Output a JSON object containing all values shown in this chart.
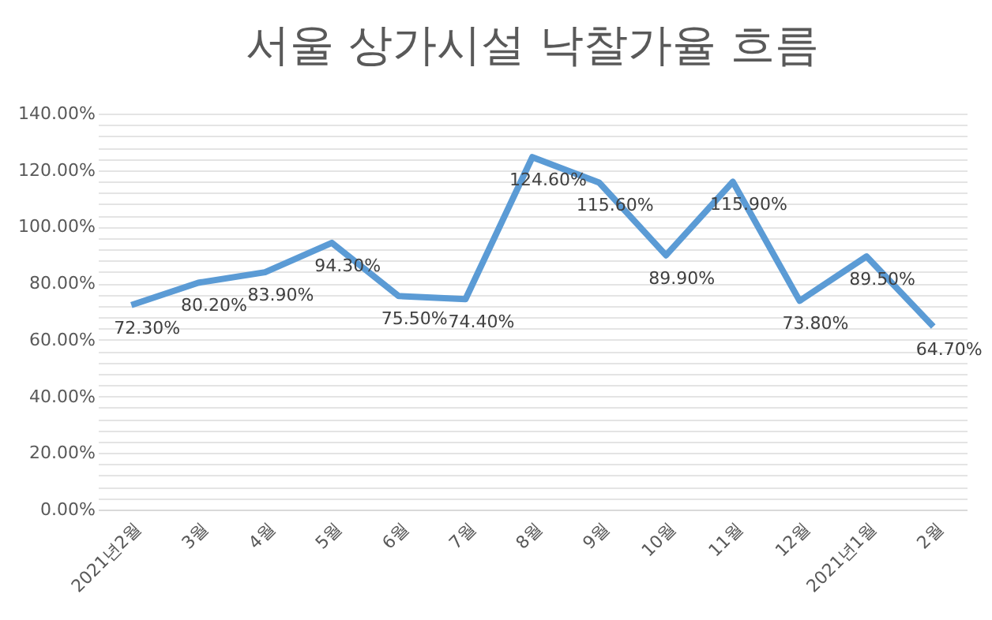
{
  "chart_data": {
    "type": "line",
    "title": "서울 상가시설 낙찰가율 흐름",
    "categories": [
      "2021년2월",
      "3월",
      "4월",
      "5월",
      "6월",
      "7월",
      "8월",
      "9월",
      "10월",
      "11월",
      "12월",
      "2021년1월",
      "2월"
    ],
    "series": [
      {
        "color": "#5b9bd5",
        "values": [
          72.3,
          80.2,
          83.9,
          94.3,
          75.5,
          74.4,
          124.6,
          115.6,
          89.9,
          115.9,
          73.8,
          89.5,
          64.7
        ]
      }
    ],
    "value_labels": [
      "72.30%",
      "80.20%",
      "83.90%",
      "94.30%",
      "75.50%",
      "74.40%",
      "124.60%",
      "115.60%",
      "89.90%",
      "115.90%",
      "73.80%",
      "89.50%",
      "64.70%"
    ],
    "ylim": [
      0,
      140
    ],
    "yticks": [
      {
        "value": 0,
        "label": "0.00%"
      },
      {
        "value": 4,
        "label": null
      },
      {
        "value": 8,
        "label": null
      },
      {
        "value": 12,
        "label": null
      },
      {
        "value": 16,
        "label": null
      },
      {
        "value": 20,
        "label": "20.00%"
      },
      {
        "value": 24,
        "label": null
      },
      {
        "value": 28,
        "label": null
      },
      {
        "value": 32,
        "label": null
      },
      {
        "value": 36,
        "label": null
      },
      {
        "value": 40,
        "label": "40.00%"
      },
      {
        "value": 44,
        "label": null
      },
      {
        "value": 48,
        "label": null
      },
      {
        "value": 52,
        "label": null
      },
      {
        "value": 56,
        "label": null
      },
      {
        "value": 60,
        "label": "60.00%"
      },
      {
        "value": 64,
        "label": null
      },
      {
        "value": 68,
        "label": null
      },
      {
        "value": 72,
        "label": null
      },
      {
        "value": 76,
        "label": null
      },
      {
        "value": 80,
        "label": "80.00%"
      },
      {
        "value": 84,
        "label": null
      },
      {
        "value": 88,
        "label": null
      },
      {
        "value": 92,
        "label": null
      },
      {
        "value": 96,
        "label": null
      },
      {
        "value": 100,
        "label": "100.00%"
      },
      {
        "value": 104,
        "label": null
      },
      {
        "value": 108,
        "label": null
      },
      {
        "value": 112,
        "label": null
      },
      {
        "value": 116,
        "label": null
      },
      {
        "value": 120,
        "label": "120.00%"
      },
      {
        "value": 124,
        "label": null
      },
      {
        "value": 128,
        "label": null
      },
      {
        "value": 132,
        "label": null
      },
      {
        "value": 136,
        "label": null
      },
      {
        "value": 140,
        "label": "140.00%"
      }
    ],
    "grid": true,
    "marker": "none",
    "line_style": "solid"
  }
}
